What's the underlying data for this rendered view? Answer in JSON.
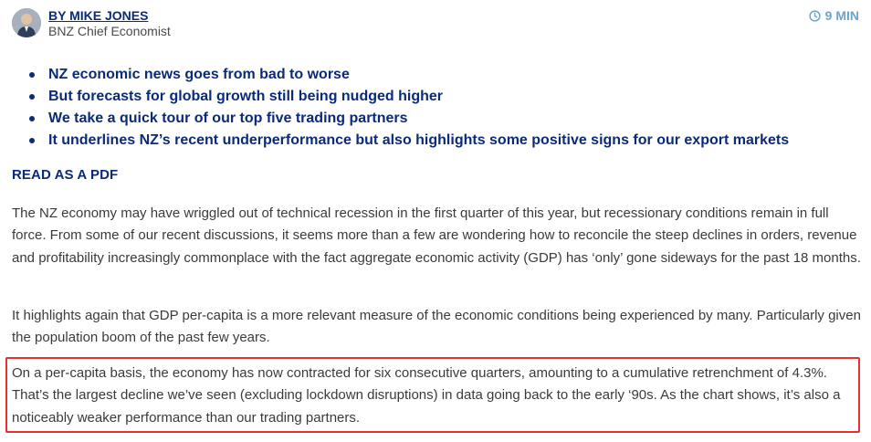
{
  "author": {
    "name": "BY MIKE JONES",
    "role": "BNZ Chief Economist"
  },
  "read_time": {
    "icon": "clock-icon",
    "label": "9 MIN"
  },
  "highlights": [
    "NZ economic news goes from bad to worse",
    "But forecasts for global growth still being nudged higher",
    "We take a quick tour of our top five trading partners",
    "It underlines NZ’s recent underperformance but also highlights some positive signs for our export markets"
  ],
  "pdf_link": "READ AS A PDF",
  "paragraphs": [
    "The NZ economy may have wriggled out of technical recession in the first quarter of this year, but recessionary conditions remain in full force. From some of our recent discussions, it seems more than a few are wondering how to reconcile the steep declines in orders, revenue and profitability increasingly commonplace with the fact aggregate economic activity (GDP) has ‘only’ gone sideways for the past 18 months.",
    "It highlights again that GDP per-capita is a more relevant measure of the economic conditions being experienced by many. Particularly given the population boom of the past few years.",
    "On a per-capita basis, the economy has now contracted for six consecutive quarters, amounting to a cumulative retrenchment of 4.3%. That’s the largest decline we’ve seen (excluding lockdown disruptions) in data going back to the early ‘90s. As the chart shows, it’s also a noticeably weaker performance than our trading partners."
  ],
  "colors": {
    "navy": "#0a2a7a",
    "accent_blue": "#6aa4c8",
    "highlight_border": "#e53030",
    "body_text": "#3a3a3a"
  }
}
